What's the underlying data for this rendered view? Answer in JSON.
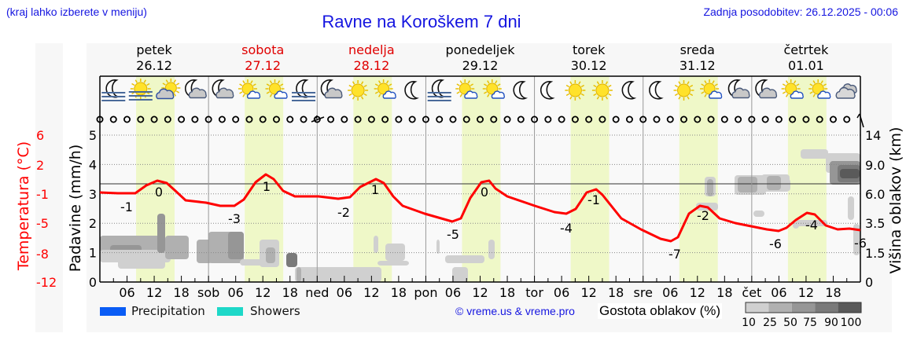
{
  "header": {
    "left_note": "(kraj lahko izberete v meniju)",
    "title": "Ravne na Koroškem 7 dni",
    "last_update": "Zadnja posodobitev: 26.12.2025 - 00:06"
  },
  "days": [
    {
      "name": "petek",
      "date": "26.12",
      "color": "#000000"
    },
    {
      "name": "sobota",
      "date": "27.12",
      "color": "#e00000"
    },
    {
      "name": "nedelja",
      "date": "28.12",
      "color": "#e00000"
    },
    {
      "name": "ponedeljek",
      "date": "29.12",
      "color": "#000000"
    },
    {
      "name": "torek",
      "date": "30.12",
      "color": "#000000"
    },
    {
      "name": "sreda",
      "date": "31.12",
      "color": "#000000"
    },
    {
      "name": "četrtek",
      "date": "01.01",
      "color": "#000000"
    }
  ],
  "weather_icons": [
    "moon-fog",
    "sun-fog",
    "sun-cloud",
    "moon-cloud",
    "moon-cloud",
    "sun-small-cloud",
    "sun-small-cloud",
    "moon-fog",
    "moon-cloud",
    "sun",
    "sun-small-cloud",
    "moon",
    "moon-fog",
    "sun-small-cloud",
    "sun-small-cloud",
    "moon",
    "moon",
    "sun",
    "sun",
    "moon",
    "moon",
    "sun",
    "sun-small-cloud",
    "moon-cloud",
    "moon-cloud",
    "sun-small-cloud",
    "sun-small-cloud",
    "cloudy"
  ],
  "axes": {
    "left_temp_label": "Temperatura (°C)",
    "left_temp_ticks": [
      "6",
      "2",
      "-1",
      "-5",
      "-8",
      "-12"
    ],
    "left_precip_label": "Padavine (mm/h)",
    "left_precip_ticks": [
      "0",
      "1",
      "2",
      "3",
      "4",
      "5"
    ],
    "right_label": "Višina oblakov (km)",
    "right_ticks": [
      "0",
      "1.5",
      "3.5",
      "6.0",
      "9.0",
      "14"
    ],
    "x_labels": [
      "06",
      "12",
      "18",
      "sob",
      "06",
      "12",
      "18",
      "ned",
      "06",
      "12",
      "18",
      "pon",
      "06",
      "12",
      "18",
      "tor",
      "06",
      "12",
      "18",
      "sre",
      "06",
      "12",
      "18",
      "čet",
      "06",
      "12",
      "18"
    ]
  },
  "legend": {
    "precipitation_label": "Precipitation",
    "precipitation_color": "#0a5cf5",
    "showers_label": "Showers",
    "showers_color": "#1ed8c8",
    "credit": "© vreme.us & vreme.pro",
    "cloud_density_label": "Gostota oblakov (%)",
    "cloud_density_ticks": [
      "10",
      "25",
      "50",
      "75",
      "90",
      "100"
    ],
    "cloud_density_colors": [
      "#d0d0d0",
      "#b0b0b0",
      "#969696",
      "#7a7a7a",
      "#5a5a5a"
    ]
  },
  "colors": {
    "temperature_line": "#ff0000",
    "daylight_band": "#eff8c8",
    "plot_bg": "#f9f9f9"
  },
  "chart_data": {
    "type": "line",
    "title": "Ravne na Koroškem 7 dni",
    "xlabel": "",
    "ylabel": "Padavine (mm/h)",
    "ylim": [
      0,
      5
    ],
    "y2label": "Temperatura (°C)",
    "y3label": "Višina oblakov (km)",
    "grid": true,
    "series": [
      {
        "name": "Temperatura (°C)",
        "annotations": [
          {
            "day": "26.12",
            "time": "06",
            "value": -1
          },
          {
            "day": "26.12",
            "time": "13",
            "value": 0
          },
          {
            "day": "27.12",
            "time": "06",
            "value": -3
          },
          {
            "day": "27.12",
            "time": "13",
            "value": 1
          },
          {
            "day": "28.12",
            "time": "06",
            "value": -2
          },
          {
            "day": "28.12",
            "time": "13",
            "value": 1
          },
          {
            "day": "29.12",
            "time": "06",
            "value": -5
          },
          {
            "day": "29.12",
            "time": "13",
            "value": 0
          },
          {
            "day": "30.12",
            "time": "06",
            "value": -4
          },
          {
            "day": "30.12",
            "time": "13",
            "value": -1
          },
          {
            "day": "31.12",
            "time": "07",
            "value": -7
          },
          {
            "day": "31.12",
            "time": "13",
            "value": -2
          },
          {
            "day": "01.01",
            "time": "06",
            "value": -6
          },
          {
            "day": "01.01",
            "time": "13",
            "value": -4
          },
          {
            "day": "01.01",
            "time": "23",
            "value": -6
          }
        ]
      },
      {
        "name": "Precipitation",
        "values": []
      },
      {
        "name": "Showers",
        "values": []
      }
    ],
    "legend_position": "bottom"
  }
}
